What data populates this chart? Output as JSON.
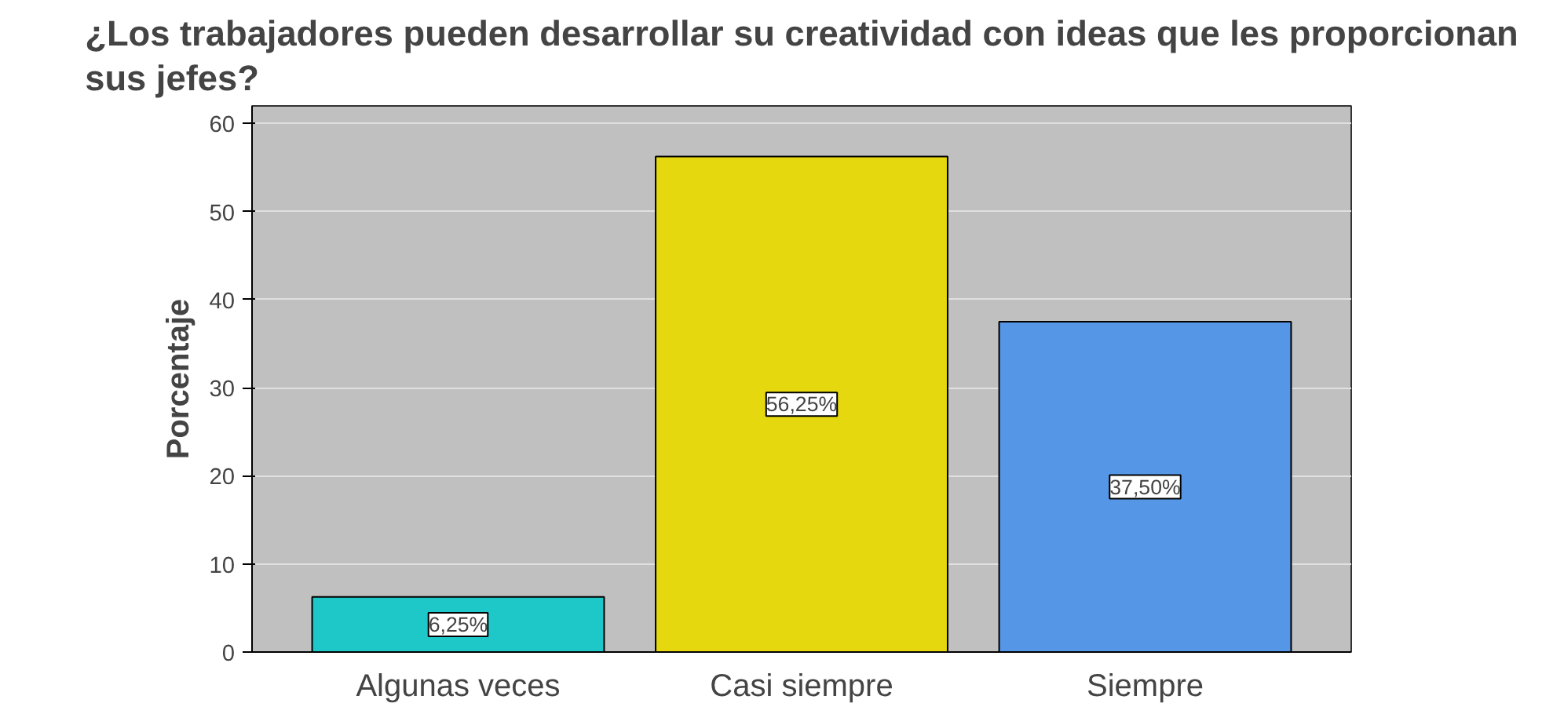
{
  "chart_data": {
    "type": "bar",
    "title": "¿Los trabajadores pueden desarrollar su creatividad con ideas que les proporcionan sus jefes?",
    "ylabel": "Porcentaje",
    "categories": [
      "Algunas veces",
      "Casi siempre",
      "Siempre"
    ],
    "values": [
      6.25,
      56.25,
      37.5
    ],
    "colors": [
      "#1fc8c8",
      "#e6d80e",
      "#5596e6"
    ],
    "value_labels": [
      "6,25%",
      "56,25%",
      "37,50%"
    ],
    "ylim": [
      0,
      62
    ],
    "yticks": [
      0,
      10,
      20,
      30,
      40,
      50,
      60
    ],
    "grid": "y"
  }
}
